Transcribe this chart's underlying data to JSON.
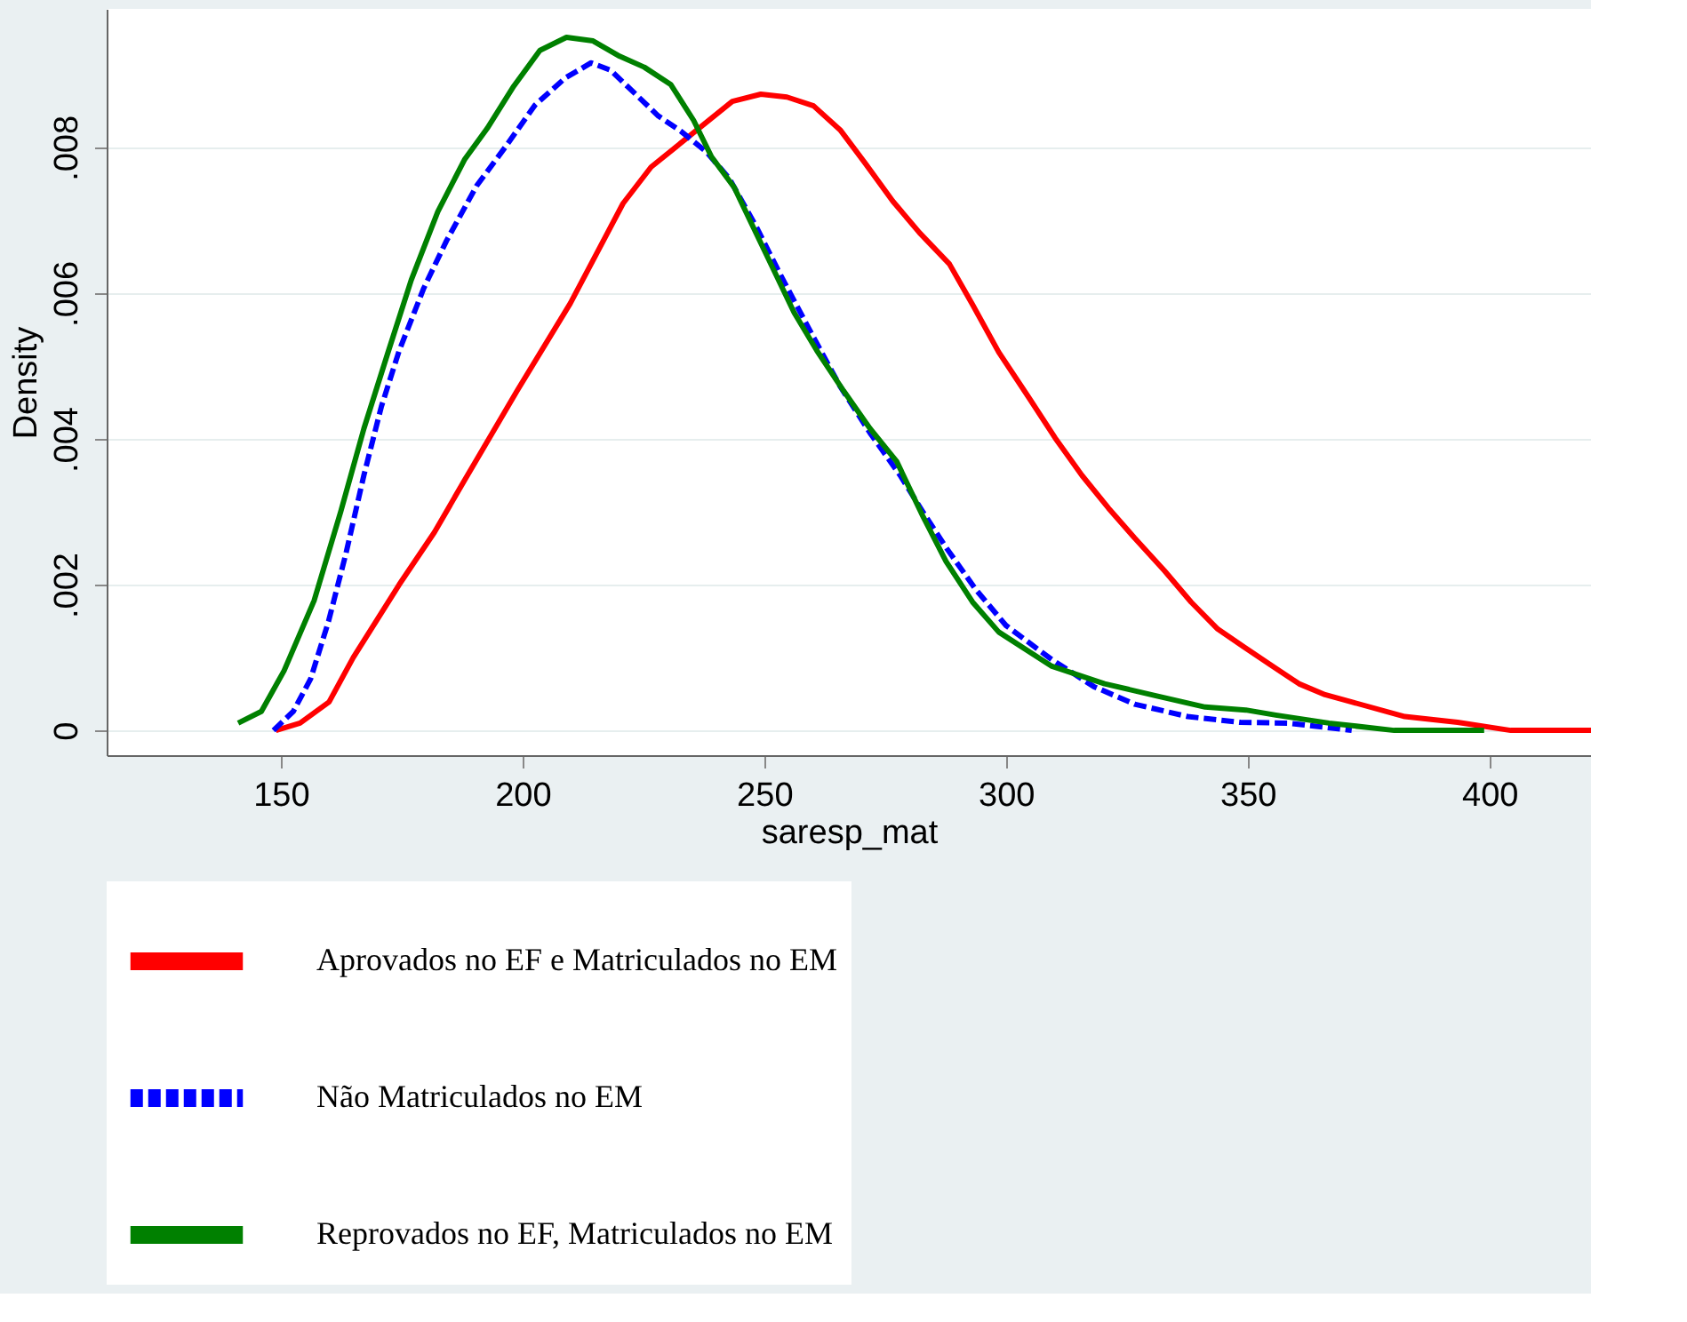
{
  "chart_data": {
    "type": "line",
    "xlabel": "saresp_mat",
    "ylabel": "Density",
    "xlim": [
      114,
      421
    ],
    "ylim": [
      -0.00034,
      0.0099
    ],
    "xticks": [
      150,
      200,
      250,
      300,
      350,
      400
    ],
    "yticks": [
      {
        "value": 0,
        "label": "0"
      },
      {
        "value": 0.002,
        "label": ".002"
      },
      {
        "value": 0.004,
        "label": ".004"
      },
      {
        "value": 0.006,
        "label": ".006"
      },
      {
        "value": 0.008,
        "label": ".008"
      }
    ],
    "grid": "y",
    "legend": "bottom",
    "marker": "none",
    "series": [
      {
        "name": "Aprovados no EF e Matriculados no EM",
        "color": "#ff0000",
        "line_style": "solid",
        "x": [
          149,
          154,
          160,
          165,
          174.5,
          181.8,
          188,
          198.9,
          209.9,
          220.8,
          226.6,
          243.4,
          249.3,
          254.7,
          260.2,
          265.7,
          270.8,
          276.6,
          282.1,
          288.3,
          293.1,
          298.5,
          304.7,
          310.2,
          315.7,
          321.2,
          326.6,
          332.8,
          338.3,
          343.8,
          349.3,
          354.7,
          360.6,
          366,
          371.5,
          382.5,
          393.4,
          404.4,
          421
        ],
        "values": [
          0,
          0.0001,
          0.00039,
          0.001,
          0.002,
          0.00272,
          0.00343,
          0.00466,
          0.00586,
          0.00723,
          0.00773,
          0.00863,
          0.00873,
          0.00869,
          0.00857,
          0.00824,
          0.00779,
          0.00726,
          0.00683,
          0.0064,
          0.00584,
          0.00519,
          0.00457,
          0.00401,
          0.0035,
          0.00305,
          0.00264,
          0.00219,
          0.00176,
          0.00139,
          0.00114,
          0.0009,
          0.00064,
          0.00049,
          0.00039,
          0.00019,
          0.00011,
          0,
          0
        ]
      },
      {
        "name": "Não Matriculados no EM",
        "color": "#0000ff",
        "line_style": "dashed",
        "x": [
          148.5,
          152.6,
          156.2,
          159.9,
          163.5,
          167.2,
          170.8,
          174.5,
          179.6,
          184.3,
          190.5,
          196.4,
          202.6,
          208.8,
          214.2,
          218.2,
          223.4,
          228.1,
          232.8,
          238,
          242.7,
          248.2,
          253.6,
          259.9,
          265.7,
          271.9,
          278.1,
          282.8,
          287.6,
          293.8,
          300,
          309.5,
          318.2,
          326.6,
          337.6,
          348.5,
          358.4,
          371.5
        ],
        "values": [
          0,
          0.00026,
          0.00071,
          0.0015,
          0.00243,
          0.0035,
          0.00444,
          0.00521,
          0.00607,
          0.00672,
          0.00747,
          0.008,
          0.00858,
          0.00895,
          0.00916,
          0.00906,
          0.00873,
          0.00843,
          0.00822,
          0.00794,
          0.00758,
          0.00693,
          0.00622,
          0.00543,
          0.00472,
          0.00408,
          0.0035,
          0.003,
          0.00251,
          0.00193,
          0.00144,
          0.00097,
          0.0006,
          0.00036,
          0.00019,
          0.00011,
          0.0001,
          0
        ]
      },
      {
        "name": "Reprovados no EF, Matriculados no EM",
        "color": "#008000",
        "line_style": "solid",
        "x": [
          141.2,
          146,
          150.7,
          156.9,
          162.4,
          167.2,
          172.3,
          177,
          182.5,
          188,
          192.7,
          198.2,
          203.6,
          209.1,
          214.6,
          220.1,
          225.2,
          230.7,
          235.4,
          239.1,
          243.8,
          250,
          256.2,
          260.9,
          266.4,
          271.9,
          277.4,
          282.8,
          287.6,
          293.1,
          298.5,
          309.5,
          320.4,
          331.4,
          341.2,
          349.6,
          355.8,
          366.8,
          380.3,
          398.9
        ],
        "values": [
          0.0001,
          0.00026,
          0.00082,
          0.00178,
          0.003,
          0.00414,
          0.00521,
          0.00618,
          0.00712,
          0.00783,
          0.00826,
          0.00884,
          0.00933,
          0.00951,
          0.00946,
          0.00925,
          0.0091,
          0.00886,
          0.00837,
          0.00787,
          0.00745,
          0.00659,
          0.00573,
          0.00521,
          0.00466,
          0.00414,
          0.00369,
          0.00294,
          0.00232,
          0.00176,
          0.00135,
          0.00088,
          0.00064,
          0.00047,
          0.00032,
          0.00028,
          0.00021,
          0.0001,
          0,
          0
        ]
      }
    ]
  }
}
